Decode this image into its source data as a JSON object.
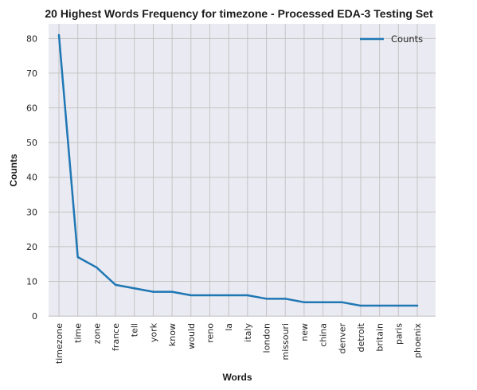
{
  "chart_data": {
    "type": "line",
    "title": "20 Highest Words Frequency for timezone - Processed EDA-3 Testing Set",
    "xlabel": "Words",
    "ylabel": "Counts",
    "categories": [
      "timezone",
      "time",
      "zone",
      "france",
      "tell",
      "york",
      "know",
      "would",
      "reno",
      "la",
      "italy",
      "london",
      "missouri",
      "new",
      "china",
      "denver",
      "detroit",
      "britain",
      "paris",
      "phoenix"
    ],
    "series": [
      {
        "name": "Counts",
        "values": [
          81,
          17,
          14,
          9,
          8,
          7,
          7,
          6,
          6,
          6,
          6,
          5,
          5,
          4,
          4,
          4,
          3,
          3,
          3,
          3
        ],
        "color": "#1f77b4"
      }
    ],
    "yticks": [
      0,
      10,
      20,
      30,
      40,
      50,
      60,
      70,
      80
    ],
    "ylim": [
      -0.2,
      84.2
    ],
    "grid": true,
    "legend_position": "top-right",
    "colors": {
      "plot_background": "#eaeaf2",
      "grid": "#c4c4c4",
      "line": "#1f77b4"
    }
  }
}
